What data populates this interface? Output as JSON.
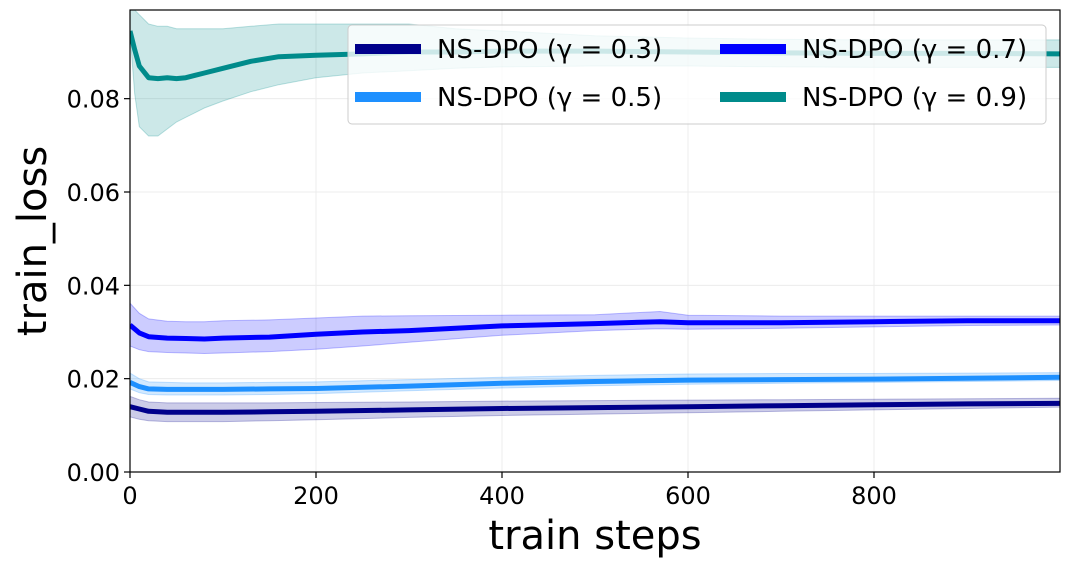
{
  "chart_data": {
    "type": "line",
    "title": "",
    "xlabel": "train steps",
    "ylabel": "train_loss",
    "xlim": [
      0,
      1000
    ],
    "ylim": [
      0,
      0.099
    ],
    "xticks": [
      0,
      200,
      400,
      600,
      800
    ],
    "xtick_labels": [
      "0",
      "200",
      "400",
      "600",
      "800"
    ],
    "yticks": [
      0.0,
      0.02,
      0.04,
      0.06,
      0.08
    ],
    "ytick_labels": [
      "0.00",
      "0.02",
      "0.04",
      "0.06",
      "0.08"
    ],
    "grid": true,
    "legend": {
      "position": "top-right",
      "columns": 2
    },
    "series": [
      {
        "name": "NS-DPO (γ = 0.3)",
        "color": "#00008b",
        "x": [
          0,
          10,
          20,
          40,
          60,
          80,
          100,
          150,
          200,
          300,
          400,
          500,
          600,
          700,
          800,
          900,
          1000
        ],
        "y": [
          0.014,
          0.0135,
          0.013,
          0.0128,
          0.0128,
          0.0128,
          0.0128,
          0.0129,
          0.013,
          0.0133,
          0.0136,
          0.0138,
          0.014,
          0.0142,
          0.0144,
          0.0146,
          0.0147
        ],
        "lower": [
          0.0118,
          0.0113,
          0.011,
          0.0108,
          0.0108,
          0.0108,
          0.0108,
          0.011,
          0.0112,
          0.0117,
          0.0121,
          0.0124,
          0.0127,
          0.013,
          0.0133,
          0.0136,
          0.0139
        ],
        "upper": [
          0.0162,
          0.0155,
          0.015,
          0.0148,
          0.0148,
          0.0148,
          0.0148,
          0.0148,
          0.0149,
          0.015,
          0.0152,
          0.0153,
          0.0154,
          0.0155,
          0.0156,
          0.0157,
          0.0158
        ]
      },
      {
        "name": "NS-DPO (γ = 0.5)",
        "color": "#1e90ff",
        "x": [
          0,
          10,
          20,
          40,
          60,
          80,
          100,
          150,
          200,
          300,
          400,
          500,
          600,
          700,
          800,
          900,
          1000
        ],
        "y": [
          0.0192,
          0.0183,
          0.0178,
          0.0177,
          0.0177,
          0.0177,
          0.0177,
          0.0178,
          0.0179,
          0.0184,
          0.019,
          0.0194,
          0.0197,
          0.0198,
          0.0199,
          0.0201,
          0.0203
        ],
        "lower": [
          0.0178,
          0.017,
          0.0166,
          0.0165,
          0.0165,
          0.0165,
          0.0165,
          0.0166,
          0.0168,
          0.0174,
          0.018,
          0.0185,
          0.0188,
          0.019,
          0.0192,
          0.0194,
          0.0196
        ],
        "upper": [
          0.0212,
          0.02,
          0.0193,
          0.0192,
          0.0191,
          0.0191,
          0.0191,
          0.0192,
          0.0193,
          0.0198,
          0.0203,
          0.0207,
          0.021,
          0.0211,
          0.0211,
          0.0212,
          0.0213
        ]
      },
      {
        "name": "NS-DPO (γ = 0.7)",
        "color": "#0000ff",
        "x": [
          0,
          10,
          20,
          40,
          60,
          80,
          100,
          150,
          200,
          250,
          300,
          400,
          500,
          570,
          600,
          700,
          800,
          900,
          1000
        ],
        "y": [
          0.0315,
          0.0298,
          0.029,
          0.0287,
          0.0286,
          0.0285,
          0.0287,
          0.0289,
          0.0295,
          0.03,
          0.0303,
          0.0313,
          0.0318,
          0.0322,
          0.032,
          0.032,
          0.0322,
          0.0324,
          0.0324
        ],
        "lower": [
          0.027,
          0.0262,
          0.0258,
          0.0256,
          0.0255,
          0.0254,
          0.0255,
          0.0258,
          0.0263,
          0.027,
          0.0278,
          0.0293,
          0.0303,
          0.0307,
          0.0306,
          0.0308,
          0.0311,
          0.0314,
          0.0315
        ],
        "upper": [
          0.0362,
          0.034,
          0.0328,
          0.0323,
          0.0322,
          0.0322,
          0.0324,
          0.0326,
          0.033,
          0.0334,
          0.0335,
          0.0336,
          0.0337,
          0.0344,
          0.0336,
          0.0334,
          0.0334,
          0.0334,
          0.0334
        ]
      },
      {
        "name": "NS-DPO (γ = 0.9)",
        "color": "#008b8b",
        "x": [
          0,
          5,
          10,
          20,
          30,
          40,
          50,
          60,
          70,
          80,
          100,
          130,
          160,
          200,
          250,
          300,
          350,
          400,
          500,
          600,
          700,
          800,
          900,
          1000
        ],
        "y": [
          0.0945,
          0.0905,
          0.087,
          0.0845,
          0.0843,
          0.0845,
          0.0843,
          0.0845,
          0.085,
          0.0855,
          0.0865,
          0.088,
          0.089,
          0.0893,
          0.0896,
          0.09,
          0.09,
          0.0902,
          0.0902,
          0.09,
          0.0898,
          0.0897,
          0.0897,
          0.0896
        ],
        "lower": [
          0.094,
          0.081,
          0.074,
          0.072,
          0.072,
          0.0735,
          0.075,
          0.076,
          0.077,
          0.078,
          0.0795,
          0.0815,
          0.083,
          0.0845,
          0.0855,
          0.086,
          0.0865,
          0.0868,
          0.087,
          0.087,
          0.0868,
          0.0867,
          0.0867,
          0.0867
        ],
        "upper": [
          0.1,
          0.099,
          0.098,
          0.096,
          0.0955,
          0.0955,
          0.095,
          0.095,
          0.095,
          0.095,
          0.095,
          0.0955,
          0.096,
          0.096,
          0.096,
          0.096,
          0.095,
          0.0945,
          0.0935,
          0.093,
          0.0927,
          0.0926,
          0.0926,
          0.0926
        ]
      }
    ]
  }
}
